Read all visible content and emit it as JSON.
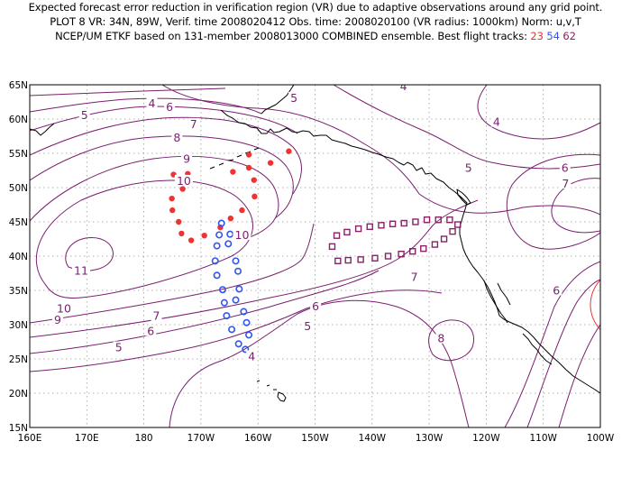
{
  "header": {
    "line1": "Expected forecast error reduction in verification region (VR) due to adaptive observations around any grid point.",
    "line2": "PLOT 8 VR: 34N, 89W, Verif. time 2008020412 Obs. time: 2008020100 (VR radius: 1000km) Norm: u,v,T",
    "line3_prefix": "NCEP/UM ETKF based on 131-member 2008013000 COMBINED ensemble.  Best flight tracks: ",
    "tracks": [
      {
        "label": "23",
        "color": "#ee3333"
      },
      {
        "label": "54",
        "color": "#3355ee"
      },
      {
        "label": "62",
        "color": "#882266"
      }
    ]
  },
  "map": {
    "lon_range": [
      160,
      260
    ],
    "lat_range": [
      15,
      65
    ],
    "lon_ticks": [
      "160E",
      "170E",
      "180",
      "170W",
      "160W",
      "150W",
      "140W",
      "130W",
      "120W",
      "110W",
      "100W"
    ],
    "lat_ticks": [
      "15N",
      "20N",
      "25N",
      "30N",
      "35N",
      "40N",
      "45N",
      "50N",
      "55N",
      "60N",
      "65N"
    ],
    "grid": true,
    "contour_color": "#7a1f6e",
    "coast_color": "#000000",
    "verification_circle_color": "#ee3333",
    "contour_labels": [
      {
        "text": "4",
        "lon": 181.4,
        "lat": 62.1
      },
      {
        "text": "5",
        "lon": 169.6,
        "lat": 60.4
      },
      {
        "text": "6",
        "lon": 184.5,
        "lat": 61.6
      },
      {
        "text": "7",
        "lon": 188.7,
        "lat": 59.1
      },
      {
        "text": "8",
        "lon": 185.8,
        "lat": 57.1
      },
      {
        "text": "9",
        "lon": 187.5,
        "lat": 54.0
      },
      {
        "text": "10",
        "lon": 187.0,
        "lat": 50.8
      },
      {
        "text": "10",
        "lon": 197.2,
        "lat": 42.9
      },
      {
        "text": "11",
        "lon": 169.0,
        "lat": 37.7
      },
      {
        "text": "10",
        "lon": 166.0,
        "lat": 32.2
      },
      {
        "text": "9",
        "lon": 164.9,
        "lat": 30.5
      },
      {
        "text": "7",
        "lon": 182.2,
        "lat": 31.1
      },
      {
        "text": "6",
        "lon": 181.2,
        "lat": 28.9
      },
      {
        "text": "5",
        "lon": 175.6,
        "lat": 26.5
      },
      {
        "text": "4",
        "lon": 198.9,
        "lat": 25.2
      },
      {
        "text": "5",
        "lon": 206.3,
        "lat": 62.9
      },
      {
        "text": "4",
        "lon": 225.5,
        "lat": 64.6
      },
      {
        "text": "4",
        "lon": 241.8,
        "lat": 59.4
      },
      {
        "text": "5",
        "lon": 236.9,
        "lat": 52.7
      },
      {
        "text": "6",
        "lon": 253.8,
        "lat": 52.7
      },
      {
        "text": "7",
        "lon": 253.9,
        "lat": 50.4
      },
      {
        "text": "7",
        "lon": 227.4,
        "lat": 36.8
      },
      {
        "text": "6",
        "lon": 210.1,
        "lat": 32.5
      },
      {
        "text": "5",
        "lon": 208.7,
        "lat": 29.6
      },
      {
        "text": "8",
        "lon": 232.1,
        "lat": 27.8
      },
      {
        "text": "6",
        "lon": 252.3,
        "lat": 34.8
      }
    ],
    "track_red": [
      [
        205.4,
        55.3
      ],
      [
        202.2,
        53.6
      ],
      [
        195.6,
        52.3
      ],
      [
        187.7,
        52.0
      ],
      [
        185.2,
        51.9
      ],
      [
        186.8,
        49.8
      ],
      [
        184.9,
        48.4
      ],
      [
        185.0,
        46.7
      ],
      [
        186.1,
        45.0
      ],
      [
        186.6,
        43.3
      ],
      [
        188.3,
        42.3
      ],
      [
        190.6,
        43.0
      ],
      [
        193.4,
        44.2
      ],
      [
        195.2,
        45.5
      ],
      [
        197.2,
        46.7
      ],
      [
        199.4,
        48.7
      ],
      [
        199.3,
        51.1
      ],
      [
        198.4,
        52.9
      ],
      [
        198.4,
        54.8
      ]
    ],
    "track_blue": [
      [
        193.6,
        44.8
      ],
      [
        195.1,
        43.2
      ],
      [
        194.8,
        41.8
      ],
      [
        196.1,
        39.3
      ],
      [
        196.5,
        37.8
      ],
      [
        196.7,
        35.2
      ],
      [
        196.1,
        33.6
      ],
      [
        197.5,
        31.9
      ],
      [
        198.0,
        30.3
      ],
      [
        198.4,
        28.5
      ],
      [
        197.8,
        26.4
      ],
      [
        196.6,
        27.2
      ],
      [
        195.4,
        29.3
      ],
      [
        194.5,
        31.3
      ],
      [
        194.1,
        33.2
      ],
      [
        193.8,
        35.1
      ],
      [
        192.8,
        37.2
      ],
      [
        192.5,
        39.3
      ],
      [
        192.8,
        41.5
      ],
      [
        193.2,
        43.1
      ]
    ],
    "track_purple": [
      [
        213.0,
        41.4
      ],
      [
        213.8,
        43.0
      ],
      [
        215.6,
        43.5
      ],
      [
        217.6,
        44.0
      ],
      [
        219.6,
        44.3
      ],
      [
        221.6,
        44.5
      ],
      [
        223.6,
        44.7
      ],
      [
        225.6,
        44.8
      ],
      [
        227.6,
        45.0
      ],
      [
        229.6,
        45.3
      ],
      [
        231.6,
        45.3
      ],
      [
        233.6,
        45.3
      ],
      [
        235.0,
        44.6
      ],
      [
        234.1,
        43.6
      ],
      [
        232.6,
        42.5
      ],
      [
        231.0,
        41.7
      ],
      [
        229.0,
        41.1
      ],
      [
        227.1,
        40.7
      ],
      [
        225.1,
        40.3
      ],
      [
        222.8,
        40.0
      ],
      [
        220.5,
        39.7
      ],
      [
        218.0,
        39.5
      ],
      [
        215.8,
        39.4
      ],
      [
        214.0,
        39.3
      ]
    ]
  }
}
